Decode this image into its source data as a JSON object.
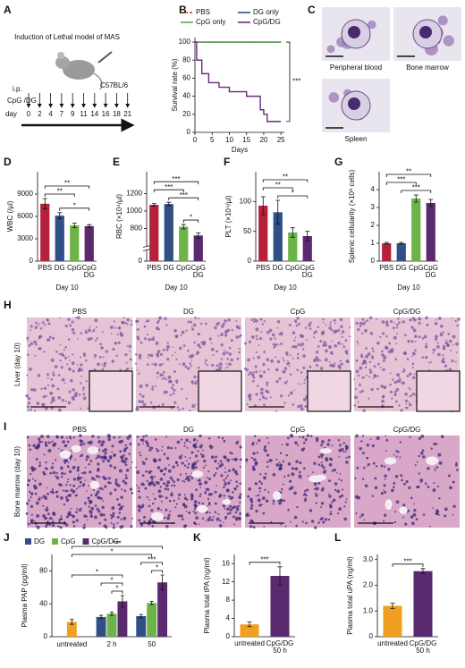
{
  "panel_labels": [
    "A",
    "B",
    "C",
    "D",
    "E",
    "F",
    "G",
    "H",
    "I",
    "J",
    "K",
    "L"
  ],
  "diagram_a": {
    "title": "Induction of Lethal model of MAS",
    "mouse_label": "C57BL/6",
    "route": "i.p.",
    "treatment": "CpG /DG",
    "day_label": "day",
    "days": [
      0,
      2,
      4,
      7,
      9,
      11,
      14,
      16,
      18,
      21
    ]
  },
  "micrographs_c": [
    "Peripheral blood",
    "Bone marrow",
    "Spleen"
  ],
  "histology": {
    "columns": [
      "PBS",
      "DG",
      "CpG",
      "CpG/DG"
    ],
    "rows": [
      "Liver (day 10)",
      "Bone marrow (day 10)"
    ]
  },
  "chart_data": [
    {
      "type": "line",
      "step": true,
      "y_label": "Survival rate (%)",
      "x_label": "Days",
      "legend": "top",
      "annotation": "***",
      "xlim": [
        0,
        26
      ],
      "xticks": [
        0,
        5,
        10,
        15,
        20,
        25
      ],
      "ylim": [
        0,
        105
      ],
      "yticks": [
        0,
        20,
        40,
        60,
        80,
        100
      ],
      "series": [
        {
          "name": "PBS",
          "color": "#c0392b",
          "dash": true,
          "x": [
            0,
            25
          ],
          "values": [
            100,
            100
          ]
        },
        {
          "name": "DG only",
          "color": "#2e4a8c",
          "x": [
            0,
            25
          ],
          "values": [
            100,
            100
          ]
        },
        {
          "name": "CpG only",
          "color": "#5aa84a",
          "x": [
            0,
            25
          ],
          "values": [
            100,
            100
          ]
        },
        {
          "name": "CpG/DG",
          "color": "#6a2c7a",
          "x": [
            0,
            0.5,
            2,
            4,
            7,
            10,
            15,
            19,
            20,
            21,
            25
          ],
          "values": [
            100,
            80,
            65,
            55,
            50,
            45,
            40,
            25,
            20,
            12,
            12
          ]
        }
      ]
    },
    {
      "type": "bar",
      "y_label": "WBC (/µl)",
      "x_label": "Day 10",
      "categories": [
        "PBS",
        "DG",
        "CpG",
        "CpG DG"
      ],
      "colors": [
        "#b5213a",
        "#2f4f86",
        "#6db34a",
        "#5b2a6e"
      ],
      "values": [
        7700,
        6100,
        4800,
        4700
      ],
      "errors": [
        700,
        400,
        300,
        200
      ],
      "ylim": [
        0,
        12000
      ],
      "yticks": [
        0,
        3000,
        6000,
        9000
      ],
      "brackets": [
        {
          "from": 1,
          "to": 3,
          "label": "*"
        },
        {
          "from": 0,
          "to": 2,
          "label": "**"
        },
        {
          "from": 0,
          "to": 3,
          "label": "**"
        }
      ]
    },
    {
      "type": "bar",
      "y_label": "RBC (×10⁴/µl)",
      "x_label": "Day 10",
      "categories": [
        "PBS",
        "DG",
        "CpG",
        "CpG DG"
      ],
      "colors": [
        "#b5213a",
        "#2f4f86",
        "#6db34a",
        "#5b2a6e"
      ],
      "values": [
        1070,
        1080,
        820,
        720
      ],
      "errors": [
        15,
        20,
        25,
        30
      ],
      "ylim": [
        0,
        1450
      ],
      "axis_break": [
        100,
        600
      ],
      "yticks": [
        0,
        800,
        1000,
        1200
      ],
      "brackets": [
        {
          "from": 2,
          "to": 3,
          "label": "*"
        },
        {
          "from": 1,
          "to": 3,
          "label": "***"
        },
        {
          "from": 0,
          "to": 2,
          "label": "***"
        },
        {
          "from": 0,
          "to": 3,
          "label": "***"
        }
      ]
    },
    {
      "type": "bar",
      "y_label": "PLT (×10⁴/µl)",
      "x_label": "Day 10",
      "categories": [
        "PBS",
        "DG",
        "CpG",
        "CpG DG"
      ],
      "colors": [
        "#b5213a",
        "#2f4f86",
        "#6db34a",
        "#5b2a6e"
      ],
      "values": [
        93,
        82,
        48,
        42
      ],
      "errors": [
        15,
        20,
        8,
        8
      ],
      "ylim": [
        0,
        150
      ],
      "yticks": [
        0,
        50,
        100
      ],
      "brackets": [
        {
          "from": 1,
          "to": 3,
          "label": "*"
        },
        {
          "from": 0,
          "to": 2,
          "label": "**"
        },
        {
          "from": 0,
          "to": 3,
          "label": "**"
        }
      ]
    },
    {
      "type": "bar",
      "y_label": "Splenic cellularity (×10⁸ cells)",
      "x_label": "Day 10",
      "categories": [
        "PBS",
        "DG",
        "CpG",
        "CpG DG"
      ],
      "colors": [
        "#b5213a",
        "#2f4f86",
        "#6db34a",
        "#5b2a6e"
      ],
      "values": [
        1.0,
        1.0,
        3.5,
        3.25
      ],
      "errors": [
        0.05,
        0.05,
        0.2,
        0.2
      ],
      "ylim": [
        0,
        5
      ],
      "yticks": [
        0,
        1,
        2,
        3,
        4
      ],
      "brackets": [
        {
          "from": 1,
          "to": 3,
          "label": "***"
        },
        {
          "from": 0,
          "to": 2,
          "label": "***"
        },
        {
          "from": 0,
          "to": 3,
          "label": "**"
        }
      ]
    },
    {
      "type": "grouped_bar",
      "y_label": "Plasma PAP (pg/ml)",
      "categories": [
        "untreated",
        "2 h",
        "50"
      ],
      "legend": "top",
      "ylim": [
        0,
        100
      ],
      "yticks": [
        0,
        40,
        80
      ],
      "series": [
        {
          "color": "#f0a020",
          "values": [
            18,
            null,
            null
          ],
          "errors": [
            3,
            null,
            null
          ]
        },
        {
          "name": "DG",
          "color": "#2f4f86",
          "values": [
            null,
            24,
            25
          ],
          "errors": [
            null,
            2,
            2
          ]
        },
        {
          "name": "CpG",
          "color": "#6db34a",
          "values": [
            null,
            28,
            41
          ],
          "errors": [
            null,
            2,
            2
          ]
        },
        {
          "name": "CpG/DG",
          "color": "#5b2a6e",
          "values": [
            null,
            43,
            66
          ],
          "errors": [
            null,
            7,
            9
          ]
        }
      ],
      "brackets": [
        {
          "from": [
            2,
            1
          ],
          "to": [
            3,
            1
          ],
          "label": "*"
        },
        {
          "from": [
            1,
            1
          ],
          "to": [
            3,
            1
          ],
          "label": "*"
        },
        {
          "from": [
            2,
            2
          ],
          "to": [
            3,
            2
          ],
          "label": "*"
        },
        {
          "from": [
            1,
            2
          ],
          "to": [
            3,
            2
          ],
          "label": "***"
        },
        {
          "from": [
            0,
            0
          ],
          "to": [
            3,
            1
          ],
          "label": "*"
        },
        {
          "from": [
            0,
            0
          ],
          "to": [
            2,
            2
          ],
          "label": "*"
        },
        {
          "from": [
            0,
            0
          ],
          "to": [
            3,
            2
          ],
          "label": "***"
        }
      ]
    },
    {
      "type": "bar",
      "y_label": "Plasma total tPA (ng/ml)",
      "categories": [
        "untreated",
        "CpG/DG 50 h"
      ],
      "colors": [
        "#f0a020",
        "#5b2a6e"
      ],
      "values": [
        2.7,
        13.3
      ],
      "errors": [
        0.5,
        2.0
      ],
      "ylim": [
        0,
        18
      ],
      "yticks": [
        0,
        4,
        8,
        12,
        16
      ],
      "brackets": [
        {
          "from": 0,
          "to": 1,
          "label": "***"
        }
      ]
    },
    {
      "type": "bar",
      "y_label": "Plasma total uPA (ng/ml)",
      "categories": [
        "untreated",
        "CpG/DG 50 h"
      ],
      "colors": [
        "#f0a020",
        "#5b2a6e"
      ],
      "values": [
        1.2,
        2.55
      ],
      "errors": [
        0.1,
        0.1
      ],
      "ylim": [
        0,
        3.2
      ],
      "yticks": [
        0,
        {
          "value": 1,
          "label": "1.0"
        },
        {
          "value": 2,
          "label": "2.0"
        },
        {
          "value": 3,
          "label": "3.0"
        }
      ],
      "brackets": [
        {
          "from": 0,
          "to": 1,
          "label": "***"
        }
      ]
    }
  ]
}
